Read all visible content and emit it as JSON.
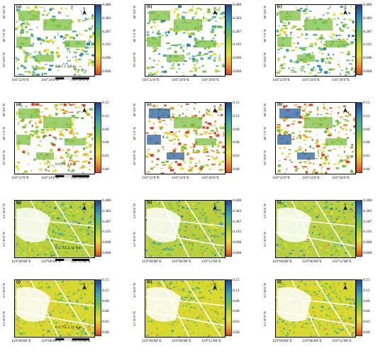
{
  "panels": [
    {
      "id": "a",
      "label": "(a)",
      "kind": "beijing",
      "scale": "value",
      "bar_color": "blue-top",
      "yticks": [
        "40°4'0\"N",
        "40°1'0\"N",
        "39°58'0\"N"
      ],
      "xticks": [
        "116°22'0\"E",
        "116°24'0\"E",
        "116°26'0\"E"
      ],
      "scale_text": "0 0.5 1   2 Km",
      "show_scale": true
    },
    {
      "id": "b",
      "label": "(b)",
      "kind": "beijing",
      "scale": "value",
      "yticks": [
        "40°4'0\"N",
        "40°1'0\"N",
        "39°58'0\"N"
      ],
      "xticks": [
        "116°22'0\"E",
        "116°24'0\"E",
        "116°26'0\"E"
      ],
      "show_scale": false
    },
    {
      "id": "c",
      "label": "(c)",
      "kind": "beijing",
      "scale": "value",
      "yticks": [
        "40°4'0\"N",
        "40°1'0\"N",
        "39°58'0\"N"
      ],
      "xticks": [
        "116°22'0\"E",
        "116°24'0\"E",
        "116°26'0\"E"
      ],
      "show_scale": false
    },
    {
      "id": "d",
      "label": "(d)",
      "kind": "beijing",
      "scale": "error",
      "yticks": [
        "40°4'0\"N",
        "40°1'0\"N",
        "39°58'0\"N"
      ],
      "xticks": [
        "116°22'0\"E",
        "116°24'0\"E",
        "116°26'0\"E"
      ],
      "scale_text": "0 0.5 1   2 Km",
      "show_scale": true
    },
    {
      "id": "e",
      "label": "(e)",
      "kind": "beijing",
      "scale": "error",
      "yticks": [
        "40°4'0\"N",
        "40°1'0\"N",
        "39°58'0\"N"
      ],
      "xticks": [
        "116°22'0\"E",
        "116°24'0\"E",
        "116°26'0\"E"
      ],
      "show_scale": false
    },
    {
      "id": "f",
      "label": "(f)",
      "kind": "beijing",
      "scale": "error",
      "yticks": [
        "40°4'0\"N",
        "40°1'0\"N",
        "39°58'0\"N"
      ],
      "xticks": [
        "116°22'0\"E",
        "116°24'0\"E",
        "116°26'0\"E"
      ],
      "show_scale": false
    },
    {
      "id": "g",
      "label": "(g)",
      "kind": "field",
      "scale": "value",
      "yticks": [
        "33°36'0\"N",
        "33°30'0\"N"
      ],
      "xticks": [
        "119°00'00\"E",
        "119°06'00\"E",
        "119°12'00\"E"
      ],
      "scale_text": "0  2.755.5       11 Km",
      "show_scale": true
    },
    {
      "id": "h",
      "label": "(h)",
      "kind": "field",
      "scale": "value",
      "yticks": [
        "33°36'0\"N",
        "33°30'0\"N"
      ],
      "xticks": [
        "119°00'00\"E",
        "119°06'00\"E",
        "119°12'00\"E"
      ],
      "show_scale": false
    },
    {
      "id": "i",
      "label": "(i)",
      "kind": "field",
      "scale": "value",
      "yticks": [
        "33°36'0\"N",
        "33°30'0\"N"
      ],
      "xticks": [
        "119°00'00\"E",
        "119°06'00\"E",
        "119°12'00\"E"
      ],
      "show_scale": false
    },
    {
      "id": "j",
      "label": "(j)",
      "kind": "field",
      "scale": "error",
      "yticks": [
        "33°36'0\"N",
        "33°30'0\"N"
      ],
      "xticks": [
        "119°00'00\"E",
        "119°06'00\"E",
        "119°12'00\"E"
      ],
      "scale_text": "0  2.755.5       11 Km",
      "show_scale": true
    },
    {
      "id": "k",
      "label": "(k)",
      "kind": "field",
      "scale": "error",
      "yticks": [
        "33°36'0\"N",
        "33°30'0\"N"
      ],
      "xticks": [
        "119°00'00\"E",
        "119°06'00\"E",
        "119°12'00\"E"
      ],
      "show_scale": false
    },
    {
      "id": "l",
      "label": "(l)",
      "kind": "field",
      "scale": "error",
      "yticks": [
        "33°36'0\"N",
        "33°30'0\"N"
      ],
      "xticks": [
        "119°00'00\"E",
        "119°06'00\"E",
        "119°12'00\"E"
      ],
      "show_scale": false
    }
  ],
  "colorbars": {
    "value": {
      "ticks": [
        "0.480",
        "0.383",
        "0.287",
        "0.191",
        "0.096",
        "0.000"
      ]
    },
    "error": {
      "ticks": [
        "0.15",
        "0.12",
        "0.09",
        "0.06",
        "0.03",
        "0.00"
      ]
    }
  },
  "north_label": "N",
  "colors": {
    "ramp": [
      "#1f3f8f",
      "#2f7fb5",
      "#45b0a0",
      "#6cc04a",
      "#b5d42f",
      "#e6e030",
      "#f0a030",
      "#e04020"
    ]
  }
}
